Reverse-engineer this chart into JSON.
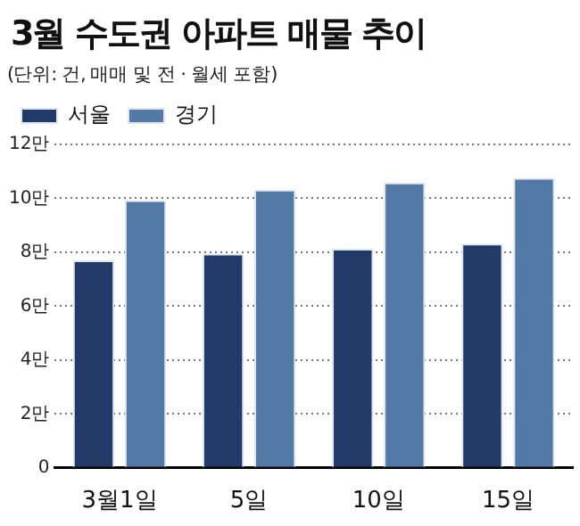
{
  "chart_data": {
    "type": "bar",
    "title": "3월 수도권 아파트 매물 추이",
    "subtitle": "(단위: 건, 매매 및 전 · 월세 포함)",
    "categories": [
      "3월1일",
      "5일",
      "10일",
      "15일"
    ],
    "series": [
      {
        "name": "서울",
        "color": "#213a68",
        "values": [
          7.7,
          7.95,
          8.13,
          8.32
        ]
      },
      {
        "name": "경기",
        "color": "#537aa6",
        "values": [
          9.93,
          10.32,
          10.59,
          10.76
        ]
      }
    ],
    "ylim": [
      0,
      12
    ],
    "yticks": [
      0,
      {
        "value": 2,
        "label": "2만"
      },
      {
        "value": 4,
        "label": "4만"
      },
      {
        "value": 6,
        "label": "6만"
      },
      {
        "value": 8,
        "label": "8만"
      },
      {
        "value": 10,
        "label": "10만"
      },
      {
        "value": 12,
        "label": "12만"
      }
    ],
    "grid": "y",
    "legend": "top left"
  }
}
